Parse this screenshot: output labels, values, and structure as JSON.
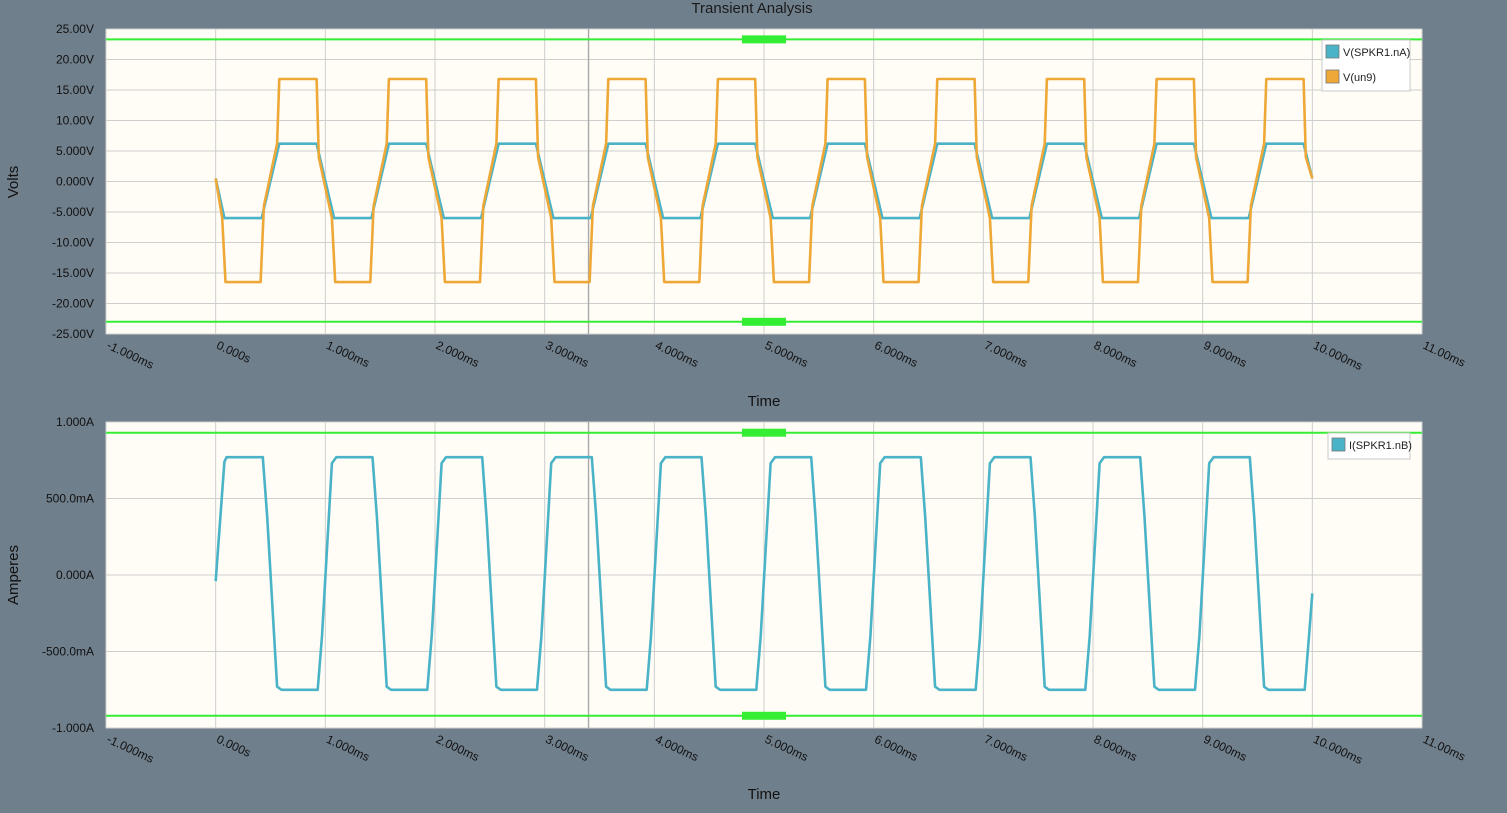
{
  "title": "Transient Analysis",
  "colors": {
    "background": "#707f8c",
    "plot_bg": "#fffdf6",
    "grid": "#cfcfcf",
    "cursor": "#33ee33",
    "series1": "#4ab3c7",
    "series2": "#eea838"
  },
  "chart_data": [
    {
      "type": "line",
      "xlabel": "Time",
      "ylabel": "Volts",
      "xlim": [
        -1,
        11
      ],
      "ylim": [
        -25,
        25
      ],
      "x_unit": "ms",
      "x_ticks": [
        "-1.000ms",
        "0.000s",
        "1.000ms",
        "2.000ms",
        "3.000ms",
        "4.000ms",
        "5.000ms",
        "6.000ms",
        "7.000ms",
        "8.000ms",
        "9.000ms",
        "10.000ms",
        "11.00ms"
      ],
      "y_ticks": [
        "25.00V",
        "20.00V",
        "15.00V",
        "10.00V",
        "5.000V",
        "0.000V",
        "-5.000V",
        "-10.00V",
        "-15.00V",
        "-20.00V",
        "-25.00V"
      ],
      "legend_position": "top-right",
      "grid": true,
      "cursors": {
        "y_upper": 23.3,
        "y_lower": -23.0,
        "x_vertical": 3.4
      },
      "series": [
        {
          "name": "V(SPKR1.nA)",
          "color": "#4ab3c7",
          "x": [
            0,
            0.08,
            0.42,
            0.58,
            0.92,
            1.08,
            1.42,
            1.58,
            1.92,
            2.08,
            2.42,
            2.58,
            2.92,
            3.08,
            3.42,
            3.58,
            3.92,
            4.08,
            4.42,
            4.58,
            4.92,
            5.08,
            5.42,
            5.58,
            5.92,
            6.08,
            6.42,
            6.58,
            6.92,
            7.08,
            7.42,
            7.58,
            7.92,
            8.08,
            8.42,
            8.58,
            8.92,
            9.08,
            9.42,
            9.58,
            9.92,
            10.0
          ],
          "y": [
            0.5,
            -6.0,
            -6.0,
            6.2,
            6.2,
            -6.0,
            -6.0,
            6.2,
            6.2,
            -6.0,
            -6.0,
            6.2,
            6.2,
            -6.0,
            -6.0,
            6.2,
            6.2,
            -6.0,
            -6.0,
            6.2,
            6.2,
            -6.0,
            -6.0,
            6.2,
            6.2,
            -6.0,
            -6.0,
            6.2,
            6.2,
            -6.0,
            -6.0,
            6.2,
            6.2,
            -6.0,
            -6.0,
            6.2,
            6.2,
            -6.0,
            -6.0,
            6.2,
            6.2,
            0.5
          ]
        },
        {
          "name": "V(un9)",
          "color": "#eea838",
          "x": [
            0,
            0.06,
            0.09,
            0.41,
            0.44,
            0.56,
            0.58,
            0.92,
            0.94,
            1.06,
            1.09,
            1.41,
            1.44,
            1.56,
            1.58,
            1.92,
            1.94,
            2.06,
            2.09,
            2.41,
            2.44,
            2.56,
            2.58,
            2.92,
            2.94,
            3.06,
            3.09,
            3.41,
            3.44,
            3.56,
            3.58,
            3.92,
            3.94,
            4.06,
            4.09,
            4.41,
            4.44,
            4.56,
            4.58,
            4.92,
            4.94,
            5.06,
            5.09,
            5.41,
            5.44,
            5.56,
            5.58,
            5.92,
            5.94,
            6.06,
            6.09,
            6.41,
            6.44,
            6.56,
            6.58,
            6.92,
            6.94,
            7.06,
            7.09,
            7.41,
            7.44,
            7.56,
            7.58,
            7.92,
            7.94,
            8.06,
            8.09,
            8.41,
            8.44,
            8.56,
            8.58,
            8.92,
            8.94,
            9.06,
            9.09,
            9.41,
            9.44,
            9.56,
            9.58,
            9.92,
            9.94,
            10.0
          ],
          "y": [
            0.5,
            -6.0,
            -16.5,
            -16.5,
            -4.0,
            6.2,
            16.8,
            16.8,
            4.0,
            -6.0,
            -16.5,
            -16.5,
            -4.0,
            6.2,
            16.8,
            16.8,
            4.0,
            -6.0,
            -16.5,
            -16.5,
            -4.0,
            6.2,
            16.8,
            16.8,
            4.0,
            -6.0,
            -16.5,
            -16.5,
            -4.0,
            6.2,
            16.8,
            16.8,
            4.0,
            -6.0,
            -16.5,
            -16.5,
            -4.0,
            6.2,
            16.8,
            16.8,
            4.0,
            -6.0,
            -16.5,
            -16.5,
            -4.0,
            6.2,
            16.8,
            16.8,
            4.0,
            -6.0,
            -16.5,
            -16.5,
            -4.0,
            6.2,
            16.8,
            16.8,
            4.0,
            -6.0,
            -16.5,
            -16.5,
            -4.0,
            6.2,
            16.8,
            16.8,
            4.0,
            -6.0,
            -16.5,
            -16.5,
            -4.0,
            6.2,
            16.8,
            16.8,
            4.0,
            -6.0,
            -16.5,
            -16.5,
            -4.0,
            6.2,
            16.8,
            16.8,
            4.0,
            0.5
          ]
        }
      ]
    },
    {
      "type": "line",
      "xlabel": "Time",
      "ylabel": "Amperes",
      "xlim": [
        -1,
        11
      ],
      "ylim": [
        -1,
        1
      ],
      "x_unit": "ms",
      "x_ticks": [
        "-1.000ms",
        "0.000s",
        "1.000ms",
        "2.000ms",
        "3.000ms",
        "4.000ms",
        "5.000ms",
        "6.000ms",
        "7.000ms",
        "8.000ms",
        "9.000ms",
        "10.000ms",
        "11.00ms"
      ],
      "y_ticks": [
        "1.000A",
        "500.0mA",
        "0.000A",
        "-500.0mA",
        "-1.000A"
      ],
      "legend_position": "top-right",
      "grid": true,
      "cursors": {
        "y_upper": 0.93,
        "y_lower": -0.92,
        "x_vertical": 3.4
      },
      "series": [
        {
          "name": "I(SPKR1.nB)",
          "color": "#4ab3c7",
          "x": [
            0,
            0.08,
            0.1,
            0.43,
            0.47,
            0.56,
            0.6,
            0.93,
            0.97,
            1.06,
            1.1,
            1.43,
            1.47,
            1.56,
            1.6,
            1.93,
            1.97,
            2.06,
            2.1,
            2.43,
            2.47,
            2.56,
            2.6,
            2.93,
            2.97,
            3.06,
            3.1,
            3.43,
            3.47,
            3.56,
            3.6,
            3.93,
            3.97,
            4.06,
            4.1,
            4.43,
            4.47,
            4.56,
            4.6,
            4.93,
            4.97,
            5.06,
            5.1,
            5.43,
            5.47,
            5.56,
            5.6,
            5.93,
            5.97,
            6.06,
            6.1,
            6.43,
            6.47,
            6.56,
            6.6,
            6.93,
            6.97,
            7.06,
            7.1,
            7.43,
            7.47,
            7.56,
            7.6,
            7.93,
            7.97,
            8.06,
            8.1,
            8.43,
            8.47,
            8.56,
            8.6,
            8.93,
            8.97,
            9.06,
            9.1,
            9.43,
            9.47,
            9.56,
            9.6,
            9.93,
            9.97,
            10.0
          ],
          "y": [
            -0.04,
            0.74,
            0.77,
            0.77,
            0.38,
            -0.73,
            -0.75,
            -0.75,
            -0.4,
            0.73,
            0.77,
            0.77,
            0.38,
            -0.73,
            -0.75,
            -0.75,
            -0.4,
            0.73,
            0.77,
            0.77,
            0.38,
            -0.73,
            -0.75,
            -0.75,
            -0.4,
            0.73,
            0.77,
            0.77,
            0.38,
            -0.73,
            -0.75,
            -0.75,
            -0.4,
            0.73,
            0.77,
            0.77,
            0.38,
            -0.73,
            -0.75,
            -0.75,
            -0.4,
            0.73,
            0.77,
            0.77,
            0.38,
            -0.73,
            -0.75,
            -0.75,
            -0.4,
            0.73,
            0.77,
            0.77,
            0.38,
            -0.73,
            -0.75,
            -0.75,
            -0.4,
            0.73,
            0.77,
            0.77,
            0.38,
            -0.73,
            -0.75,
            -0.75,
            -0.4,
            0.73,
            0.77,
            0.77,
            0.38,
            -0.73,
            -0.75,
            -0.75,
            -0.4,
            0.73,
            0.77,
            0.77,
            0.38,
            -0.73,
            -0.75,
            -0.75,
            -0.4,
            -0.12
          ]
        }
      ]
    }
  ]
}
